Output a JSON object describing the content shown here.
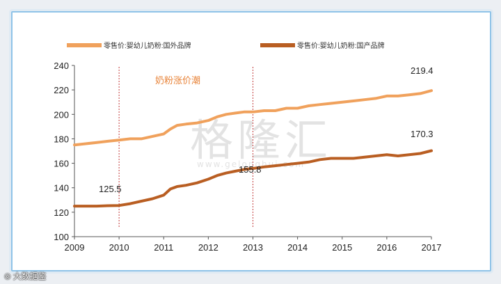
{
  "colors": {
    "foreign": "#f0a15c",
    "domestic": "#b95e22",
    "annotation_text": "#e8843a",
    "boom_line": "#c23a3a",
    "watermark": "#dcdcdc"
  },
  "watermark": {
    "logo_text": "格隆汇",
    "url_text": "www.gelonghui.com",
    "corner_text": "大数据鉴",
    "corner_icon": "camera-icon"
  },
  "chart_data": {
    "type": "line",
    "title": "",
    "xlabel": "",
    "ylabel": "",
    "x_ticks": [
      "2009",
      "2010",
      "2011",
      "2012",
      "2013",
      "2014",
      "2015",
      "2016",
      "2017"
    ],
    "xlim": [
      2009,
      2017
    ],
    "ylim": [
      100,
      240
    ],
    "y_ticks": [
      100,
      120,
      140,
      160,
      180,
      200,
      220,
      240
    ],
    "grid": false,
    "legend_position": "top",
    "series": [
      {
        "name": "零售价:婴幼儿奶粉:国外品牌",
        "color_key": "foreign",
        "points": [
          [
            2009.0,
            175
          ],
          [
            2009.25,
            176
          ],
          [
            2009.5,
            177
          ],
          [
            2009.75,
            178
          ],
          [
            2010.0,
            179
          ],
          [
            2010.25,
            180
          ],
          [
            2010.5,
            180
          ],
          [
            2010.75,
            182
          ],
          [
            2011.0,
            184
          ],
          [
            2011.15,
            188
          ],
          [
            2011.3,
            191
          ],
          [
            2011.5,
            192
          ],
          [
            2011.75,
            193
          ],
          [
            2012.0,
            195
          ],
          [
            2012.2,
            198
          ],
          [
            2012.4,
            200
          ],
          [
            2012.6,
            201
          ],
          [
            2012.8,
            202
          ],
          [
            2013.0,
            202
          ],
          [
            2013.25,
            203
          ],
          [
            2013.5,
            203
          ],
          [
            2013.75,
            205
          ],
          [
            2014.0,
            205
          ],
          [
            2014.25,
            207
          ],
          [
            2014.5,
            208
          ],
          [
            2014.75,
            209
          ],
          [
            2015.0,
            210
          ],
          [
            2015.25,
            211
          ],
          [
            2015.5,
            212
          ],
          [
            2015.75,
            213
          ],
          [
            2016.0,
            215
          ],
          [
            2016.25,
            215
          ],
          [
            2016.5,
            216
          ],
          [
            2016.75,
            217
          ],
          [
            2017.0,
            219.4
          ]
        ],
        "end_label": "219.4"
      },
      {
        "name": "零售价:婴幼儿奶粉:国产品牌",
        "color_key": "domestic",
        "points": [
          [
            2009.0,
            125
          ],
          [
            2009.25,
            125
          ],
          [
            2009.5,
            125
          ],
          [
            2009.75,
            125.3
          ],
          [
            2010.0,
            125.5
          ],
          [
            2010.25,
            127
          ],
          [
            2010.5,
            129
          ],
          [
            2010.75,
            131
          ],
          [
            2011.0,
            134
          ],
          [
            2011.15,
            139
          ],
          [
            2011.3,
            141
          ],
          [
            2011.5,
            142
          ],
          [
            2011.75,
            144
          ],
          [
            2012.0,
            147
          ],
          [
            2012.2,
            150
          ],
          [
            2012.4,
            152
          ],
          [
            2012.6,
            153.5
          ],
          [
            2012.8,
            155
          ],
          [
            2013.0,
            155.8
          ],
          [
            2013.25,
            157
          ],
          [
            2013.5,
            158
          ],
          [
            2013.75,
            159
          ],
          [
            2014.0,
            160
          ],
          [
            2014.25,
            161
          ],
          [
            2014.5,
            163
          ],
          [
            2014.75,
            164
          ],
          [
            2015.0,
            164
          ],
          [
            2015.25,
            164
          ],
          [
            2015.5,
            165
          ],
          [
            2015.75,
            166
          ],
          [
            2016.0,
            167
          ],
          [
            2016.25,
            166
          ],
          [
            2016.5,
            167
          ],
          [
            2016.75,
            168
          ],
          [
            2017.0,
            170.3
          ]
        ],
        "end_label": "170.3"
      }
    ],
    "annotations": [
      {
        "text": "奶粉涨价潮",
        "kind": "title_note"
      },
      {
        "text": "125.5",
        "x": 2010.0,
        "y": 125.5,
        "kind": "value"
      },
      {
        "text": "155.8",
        "x": 2013.0,
        "y": 155.8,
        "kind": "value"
      }
    ],
    "vertical_markers": [
      2010.0,
      2013.0
    ]
  }
}
